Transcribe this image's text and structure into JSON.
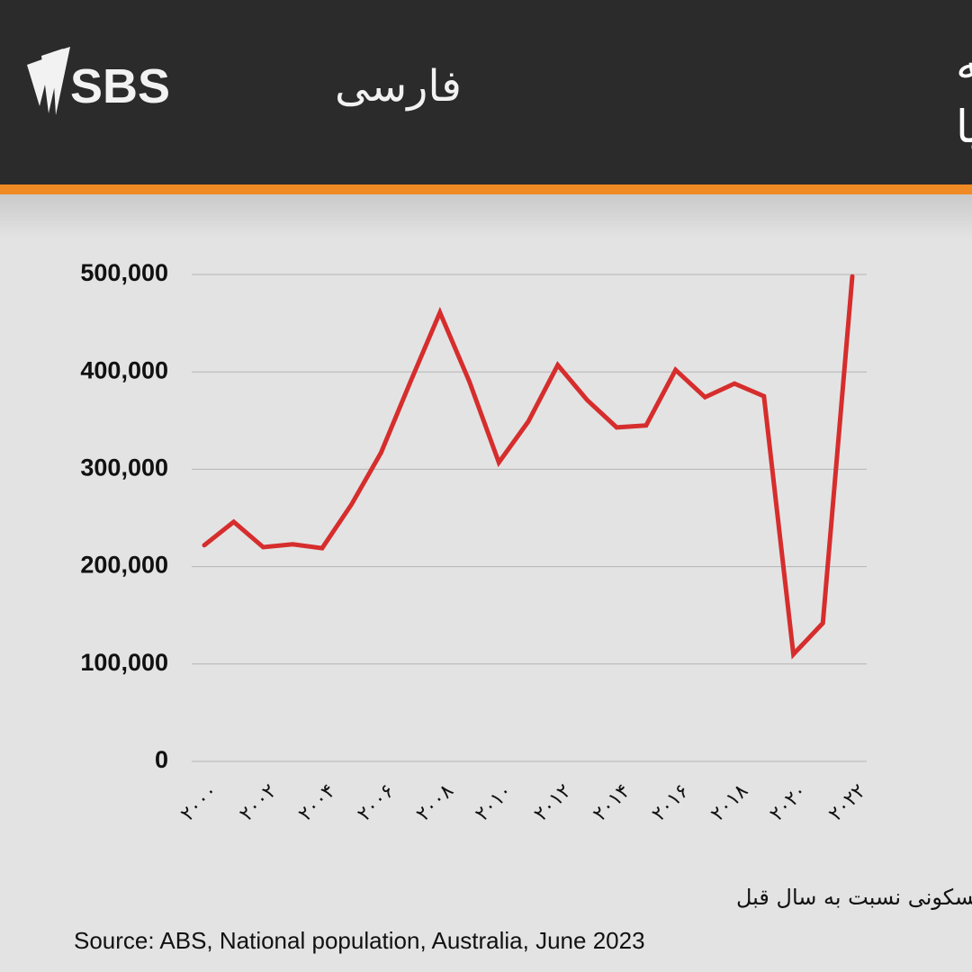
{
  "chart_data": {
    "type": "line",
    "title": [
      "افزایش خالص سالانه",
      "جمعیت استرالیا"
    ],
    "brand": {
      "name": "SBS",
      "language": "فارسی"
    },
    "note": "برآورد تغییر جمعیت مسکونی نسبت به سال قبل",
    "source": "Source: ABS, National population, Australia, June 2023",
    "x": [
      2000,
      2001,
      2002,
      2003,
      2004,
      2005,
      2006,
      2007,
      2008,
      2009,
      2010,
      2011,
      2012,
      2013,
      2014,
      2015,
      2016,
      2017,
      2018,
      2019,
      2020,
      2021,
      2022
    ],
    "series": [
      {
        "color": "#d62d2d",
        "values": [
          222000,
          246000,
          220000,
          223000,
          219000,
          264000,
          317000,
          390000,
          461000,
          390000,
          307000,
          349000,
          407000,
          371000,
          343000,
          345000,
          402000,
          374000,
          388000,
          375000,
          110000,
          142000,
          498000
        ]
      }
    ],
    "xlim": [
      2000,
      2022
    ],
    "xticks": [
      {
        "value": 2000,
        "label": "۲۰۰۰"
      },
      {
        "value": 2002,
        "label": "۲۰۰۲"
      },
      {
        "value": 2004,
        "label": "۲۰۰۴"
      },
      {
        "value": 2006,
        "label": "۲۰۰۶"
      },
      {
        "value": 2008,
        "label": "۲۰۰۸"
      },
      {
        "value": 2010,
        "label": "۲۰۱۰"
      },
      {
        "value": 2012,
        "label": "۲۰۱۲"
      },
      {
        "value": 2014,
        "label": "۲۰۱۴"
      },
      {
        "value": 2016,
        "label": "۲۰۱۶"
      },
      {
        "value": 2018,
        "label": "۲۰۱۸"
      },
      {
        "value": 2020,
        "label": "۲۰۲۰"
      },
      {
        "value": 2022,
        "label": "۲۰۲۲"
      }
    ],
    "ylim": [
      0,
      500000
    ],
    "yticks": [
      0,
      {
        "value": 100000,
        "label": "100,000"
      },
      {
        "value": 200000,
        "label": "200,000"
      },
      {
        "value": 300000,
        "label": "300,000"
      },
      {
        "value": 400000,
        "label": "400,000"
      },
      {
        "value": 500000,
        "label": "500,000"
      }
    ],
    "grid": true
  }
}
